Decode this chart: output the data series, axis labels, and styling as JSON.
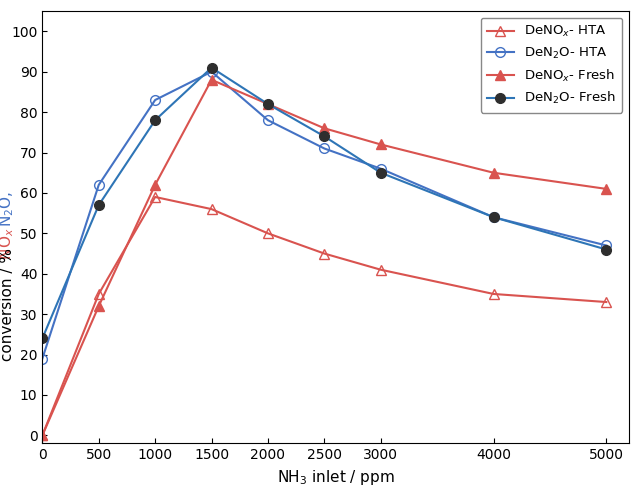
{
  "series": [
    {
      "label": "DeNO$_x$- HTA",
      "color": "#d9534f",
      "marker": "^",
      "markerfacecolor": "none",
      "markeredgecolor": "#d9534f",
      "markersize": 7,
      "linewidth": 1.5,
      "x": [
        0,
        500,
        1000,
        1500,
        2000,
        2500,
        3000,
        4000,
        5000
      ],
      "y": [
        0,
        35,
        59,
        56,
        50,
        45,
        41,
        35,
        33
      ]
    },
    {
      "label": "DeN$_2$O- HTA",
      "color": "#4472c4",
      "marker": "o",
      "markerfacecolor": "none",
      "markeredgecolor": "#4472c4",
      "markersize": 7,
      "linewidth": 1.5,
      "x": [
        0,
        500,
        1000,
        1500,
        2000,
        2500,
        3000,
        4000,
        5000
      ],
      "y": [
        19,
        62,
        83,
        90,
        78,
        71,
        66,
        54,
        47
      ]
    },
    {
      "label": "DeNO$_x$- Fresh",
      "color": "#d9534f",
      "marker": "^",
      "markerfacecolor": "#d9534f",
      "markeredgecolor": "#d9534f",
      "markersize": 7,
      "linewidth": 1.5,
      "x": [
        0,
        500,
        1000,
        1500,
        2000,
        2500,
        3000,
        4000,
        5000
      ],
      "y": [
        0,
        32,
        62,
        88,
        82,
        76,
        72,
        65,
        61
      ]
    },
    {
      "label": "DeN$_2$O- Fresh",
      "color": "#2e75b6",
      "marker": "o",
      "markerfacecolor": "#2e2e2e",
      "markeredgecolor": "#2e2e2e",
      "markersize": 7,
      "linewidth": 1.5,
      "x": [
        0,
        500,
        1000,
        1500,
        2000,
        2500,
        3000,
        4000,
        5000
      ],
      "y": [
        24,
        57,
        78,
        91,
        82,
        74,
        65,
        54,
        46
      ]
    }
  ],
  "xlabel": "NH$_3$ inlet / ppm",
  "xlim": [
    0,
    5200
  ],
  "ylim": [
    -2,
    105
  ],
  "xticks": [
    0,
    500,
    1000,
    1500,
    2000,
    2500,
    3000,
    4000,
    5000
  ],
  "yticks": [
    0,
    10,
    20,
    30,
    40,
    50,
    60,
    70,
    80,
    90,
    100
  ],
  "color_n2o": "#4472c4",
  "color_nox": "#d9534f",
  "bg_color": "#ffffff",
  "legend_loc": "upper right",
  "figsize": [
    6.4,
    4.98
  ],
  "dpi": 100,
  "tick_labelsize": 10,
  "axis_labelsize": 11,
  "legend_fontsize": 9.5
}
